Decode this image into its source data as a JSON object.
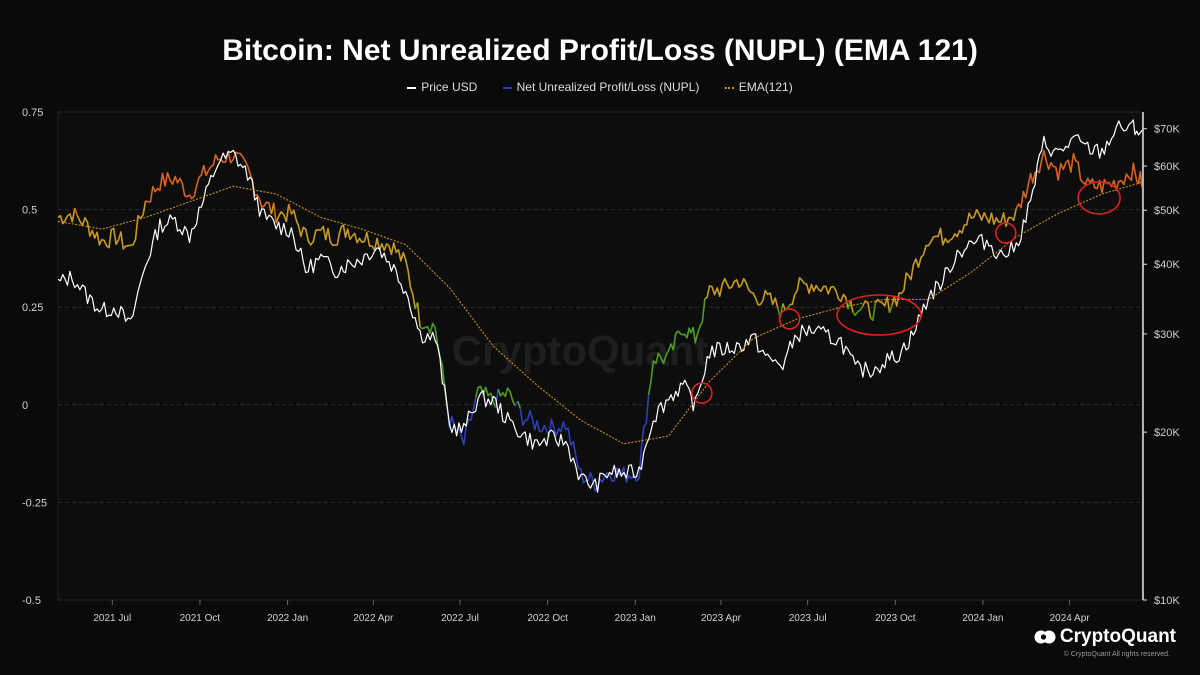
{
  "chart_data": {
    "type": "line",
    "title": "Bitcoin: Net Unrealized Profit/Loss (NUPL) (EMA 121)",
    "legend": [
      "Price USD",
      "Net Unrealized Profit/Loss (NUPL)",
      "EMA(121)"
    ],
    "brand": "CryptoQuant",
    "copyright": "© CryptoQuant All rights reserved.",
    "watermark": "CryptoQuant",
    "colors": {
      "background": "#0a0a0a",
      "price": "#ffffff",
      "nupl_belief": "#c99a22",
      "nupl_greed": "#d8641e",
      "nupl_hope": "#4e9b26",
      "nupl_capitulation": "#2f3fb8",
      "ema": "#c98f1a",
      "grid": "#2c2c2c",
      "axis_text": "#d0d0d0",
      "annotation": "#e02020"
    },
    "y_left": {
      "label": "",
      "ylim": [
        -0.5,
        0.75
      ],
      "ticks": [
        0.75,
        0.5,
        0.25,
        0,
        -0.25,
        -0.5
      ],
      "tick_labels": [
        "0.75",
        "0.5",
        "0.25",
        "0",
        "-0.25",
        "-0.5"
      ]
    },
    "y_right": {
      "label": "",
      "scale": "log",
      "ylim": [
        10000,
        75000
      ],
      "ticks": [
        70000,
        60000,
        50000,
        40000,
        30000,
        20000,
        10000
      ],
      "tick_labels": [
        "$70K",
        "$60K",
        "$50K",
        "$40K",
        "$30K",
        "$20K",
        "$10K"
      ]
    },
    "x_axis": {
      "xlim": [
        "2021-05-05",
        "2024-06-16"
      ],
      "ticks": [
        "2021-07-01",
        "2021-10-01",
        "2022-01-01",
        "2022-04-01",
        "2022-07-01",
        "2022-10-01",
        "2023-01-01",
        "2023-04-01",
        "2023-07-01",
        "2023-10-01",
        "2024-01-01",
        "2024-04-01"
      ],
      "tick_labels": [
        "2021 Jul",
        "2021 Oct",
        "2022 Jan",
        "2022 Apr",
        "2022 Jul",
        "2022 Oct",
        "2023 Jan",
        "2023 Apr",
        "2023 Jul",
        "2023 Oct",
        "2024 Jan",
        "2024 Apr"
      ]
    },
    "series": [
      {
        "name": "Net Unrealized Profit/Loss (NUPL)",
        "axis": "left",
        "x": [
          "2021-05-05",
          "2021-05-20",
          "2021-06-05",
          "2021-06-20",
          "2021-07-05",
          "2021-07-20",
          "2021-08-05",
          "2021-08-20",
          "2021-09-05",
          "2021-09-20",
          "2021-10-05",
          "2021-10-20",
          "2021-11-05",
          "2021-11-20",
          "2021-12-05",
          "2021-12-20",
          "2022-01-05",
          "2022-01-20",
          "2022-02-05",
          "2022-02-20",
          "2022-03-05",
          "2022-03-20",
          "2022-04-05",
          "2022-04-20",
          "2022-05-05",
          "2022-05-20",
          "2022-06-05",
          "2022-06-20",
          "2022-07-05",
          "2022-07-20",
          "2022-08-05",
          "2022-08-20",
          "2022-09-05",
          "2022-09-20",
          "2022-10-05",
          "2022-10-20",
          "2022-11-05",
          "2022-11-20",
          "2022-12-05",
          "2022-12-20",
          "2023-01-05",
          "2023-01-20",
          "2023-02-05",
          "2023-02-20",
          "2023-03-05",
          "2023-03-20",
          "2023-04-05",
          "2023-04-20",
          "2023-05-05",
          "2023-05-20",
          "2023-06-05",
          "2023-06-20",
          "2023-07-05",
          "2023-07-20",
          "2023-08-05",
          "2023-08-20",
          "2023-09-05",
          "2023-09-20",
          "2023-10-05",
          "2023-10-20",
          "2023-11-05",
          "2023-11-20",
          "2023-12-05",
          "2023-12-20",
          "2024-01-05",
          "2024-01-20",
          "2024-02-05",
          "2024-02-20",
          "2024-03-05",
          "2024-03-20",
          "2024-04-05",
          "2024-04-20",
          "2024-05-05",
          "2024-05-20",
          "2024-06-05",
          "2024-06-16"
        ],
        "values": [
          0.48,
          0.49,
          0.46,
          0.42,
          0.43,
          0.4,
          0.52,
          0.57,
          0.58,
          0.54,
          0.59,
          0.63,
          0.64,
          0.6,
          0.52,
          0.49,
          0.49,
          0.43,
          0.44,
          0.43,
          0.45,
          0.43,
          0.42,
          0.41,
          0.36,
          0.22,
          0.2,
          -0.04,
          -0.1,
          0.03,
          0.01,
          0.03,
          -0.03,
          -0.05,
          -0.06,
          -0.05,
          -0.18,
          -0.2,
          -0.17,
          -0.18,
          -0.17,
          0.12,
          0.12,
          0.2,
          0.17,
          0.29,
          0.3,
          0.32,
          0.28,
          0.27,
          0.24,
          0.3,
          0.31,
          0.3,
          0.29,
          0.25,
          0.24,
          0.25,
          0.28,
          0.35,
          0.43,
          0.43,
          0.45,
          0.48,
          0.48,
          0.47,
          0.49,
          0.58,
          0.64,
          0.6,
          0.62,
          0.56,
          0.56,
          0.57,
          0.6,
          0.57
        ]
      },
      {
        "name": "Price USD",
        "axis": "right",
        "x": [
          "2021-05-05",
          "2021-05-20",
          "2021-06-05",
          "2021-06-20",
          "2021-07-05",
          "2021-07-20",
          "2021-08-05",
          "2021-08-20",
          "2021-09-05",
          "2021-09-20",
          "2021-10-05",
          "2021-10-20",
          "2021-11-05",
          "2021-11-20",
          "2021-12-05",
          "2021-12-20",
          "2022-01-05",
          "2022-01-20",
          "2022-02-05",
          "2022-02-20",
          "2022-03-05",
          "2022-03-20",
          "2022-04-05",
          "2022-04-20",
          "2022-05-05",
          "2022-05-20",
          "2022-06-05",
          "2022-06-20",
          "2022-07-05",
          "2022-07-20",
          "2022-08-05",
          "2022-08-20",
          "2022-09-05",
          "2022-09-20",
          "2022-10-05",
          "2022-10-20",
          "2022-11-05",
          "2022-11-20",
          "2022-12-05",
          "2022-12-20",
          "2023-01-05",
          "2023-01-20",
          "2023-02-05",
          "2023-02-20",
          "2023-03-05",
          "2023-03-20",
          "2023-04-05",
          "2023-04-20",
          "2023-05-05",
          "2023-05-20",
          "2023-06-05",
          "2023-06-20",
          "2023-07-05",
          "2023-07-20",
          "2023-08-05",
          "2023-08-20",
          "2023-09-05",
          "2023-09-20",
          "2023-10-05",
          "2023-10-20",
          "2023-11-05",
          "2023-11-20",
          "2023-12-05",
          "2023-12-20",
          "2024-01-05",
          "2024-01-20",
          "2024-02-05",
          "2024-02-20",
          "2024-03-05",
          "2024-03-20",
          "2024-04-05",
          "2024-04-20",
          "2024-05-05",
          "2024-05-20",
          "2024-06-05",
          "2024-06-16"
        ],
        "values": [
          37000,
          38000,
          35000,
          33000,
          33500,
          31000,
          40000,
          47000,
          48000,
          45000,
          52000,
          61000,
          63000,
          58000,
          49000,
          47000,
          46000,
          39000,
          41000,
          39000,
          40000,
          41000,
          43000,
          40000,
          36000,
          30000,
          29500,
          20500,
          20200,
          23000,
          22800,
          21000,
          19800,
          19000,
          19500,
          19200,
          16500,
          16000,
          17000,
          16800,
          17000,
          21300,
          23000,
          24300,
          22300,
          27900,
          28200,
          28500,
          29500,
          27000,
          26400,
          30000,
          30500,
          29800,
          29100,
          26000,
          25800,
          26800,
          27600,
          30000,
          35000,
          37400,
          41900,
          43600,
          44000,
          41500,
          43000,
          51500,
          66000,
          63000,
          67000,
          64500,
          63500,
          70000,
          70500,
          69000
        ]
      },
      {
        "name": "EMA(121)",
        "axis": "left",
        "x": [
          "2021-05-05",
          "2021-06-20",
          "2021-08-05",
          "2021-09-20",
          "2021-11-05",
          "2021-12-20",
          "2022-02-05",
          "2022-03-20",
          "2022-05-05",
          "2022-06-20",
          "2022-08-05",
          "2022-09-20",
          "2022-11-05",
          "2022-12-20",
          "2023-02-05",
          "2023-03-20",
          "2023-05-05",
          "2023-06-20",
          "2023-08-05",
          "2023-09-20",
          "2023-11-05",
          "2023-12-20",
          "2024-02-05",
          "2024-03-20",
          "2024-05-05",
          "2024-06-16"
        ],
        "values": [
          0.47,
          0.45,
          0.48,
          0.52,
          0.56,
          0.54,
          0.48,
          0.45,
          0.41,
          0.3,
          0.15,
          0.05,
          -0.04,
          -0.1,
          -0.08,
          0.06,
          0.17,
          0.22,
          0.25,
          0.27,
          0.27,
          0.34,
          0.43,
          0.49,
          0.54,
          0.57
        ]
      }
    ],
    "annotations": [
      {
        "shape": "circle",
        "date": "2023-03-12",
        "value": 0.03
      },
      {
        "shape": "circle",
        "date": "2023-06-12",
        "value": 0.22
      },
      {
        "shape": "ellipse",
        "date": "2023-09-14",
        "value": 0.23
      },
      {
        "shape": "circle",
        "date": "2024-01-25",
        "value": 0.44
      },
      {
        "shape": "ellipse",
        "date": "2024-05-02",
        "value": 0.53
      }
    ],
    "grid": true,
    "legend_position": "top-center"
  }
}
